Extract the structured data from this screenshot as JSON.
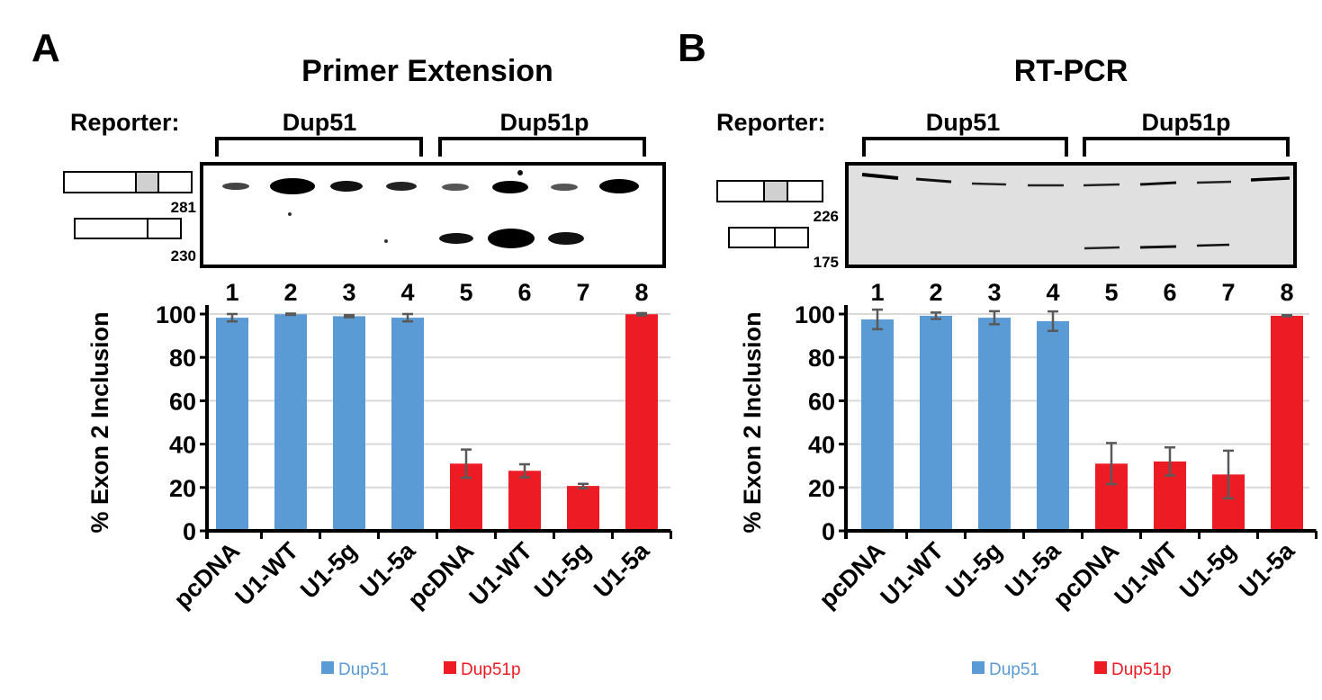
{
  "panels": [
    {
      "letter": "A",
      "title": "Primer Extension",
      "reporter_label": "Reporter:",
      "groups": [
        "Dup51",
        "Dup51p"
      ],
      "size_markers": [
        "281",
        "230"
      ],
      "lanes": [
        "1",
        "2",
        "3",
        "4",
        "5",
        "6",
        "7",
        "8"
      ]
    },
    {
      "letter": "B",
      "title": "RT-PCR",
      "reporter_label": "Reporter:",
      "groups": [
        "Dup51",
        "Dup51p"
      ],
      "size_markers": [
        "226",
        "175"
      ],
      "lanes": [
        "1",
        "2",
        "3",
        "4",
        "5",
        "6",
        "7",
        "8"
      ]
    }
  ],
  "chart_data": [
    {
      "type": "bar",
      "title": "Primer Extension",
      "ylabel": "% Exon 2 Inclusion",
      "ylim": [
        0,
        100
      ],
      "yticks": [
        "0",
        "20",
        "40",
        "60",
        "80",
        "100"
      ],
      "grid": true,
      "categories": [
        "pcDNA",
        "U1-WT",
        "U1-5g",
        "U1-5a",
        "pcDNA",
        "U1-WT",
        "U1-5g",
        "U1-5a"
      ],
      "values": [
        98.3,
        99.9,
        99.0,
        98.3,
        31.0,
        27.7,
        20.7,
        99.9
      ],
      "errors": [
        1.7,
        0.3,
        0.5,
        1.7,
        6.5,
        3.0,
        1.0,
        0.5
      ],
      "series_of_bar": [
        "Dup51",
        "Dup51",
        "Dup51",
        "Dup51",
        "Dup51p",
        "Dup51p",
        "Dup51p",
        "Dup51p"
      ],
      "legend": [
        {
          "name": "Dup51",
          "color": "#5b9bd5"
        },
        {
          "name": "Dup51p",
          "color": "#ed1c24"
        }
      ],
      "legend_position": "bottom"
    },
    {
      "type": "bar",
      "title": "RT-PCR",
      "ylabel": "% Exon 2 Inclusion",
      "ylim": [
        0,
        100
      ],
      "yticks": [
        "0",
        "20",
        "40",
        "60",
        "80",
        "100"
      ],
      "grid": true,
      "categories": [
        "pcDNA",
        "U1-WT",
        "U1-5g",
        "U1-5a",
        "pcDNA",
        "U1-WT",
        "U1-5g",
        "U1-5a"
      ],
      "values": [
        97.5,
        99.2,
        98.3,
        96.7,
        31.0,
        32.0,
        26.0,
        99.2
      ],
      "errors": [
        4.5,
        1.5,
        3.0,
        4.5,
        9.5,
        6.5,
        11.0,
        0.3
      ],
      "series_of_bar": [
        "Dup51",
        "Dup51",
        "Dup51",
        "Dup51",
        "Dup51p",
        "Dup51p",
        "Dup51p",
        "Dup51p"
      ],
      "legend": [
        {
          "name": "Dup51",
          "color": "#5b9bd5"
        },
        {
          "name": "Dup51p",
          "color": "#ed1c24"
        }
      ],
      "legend_position": "bottom"
    }
  ]
}
